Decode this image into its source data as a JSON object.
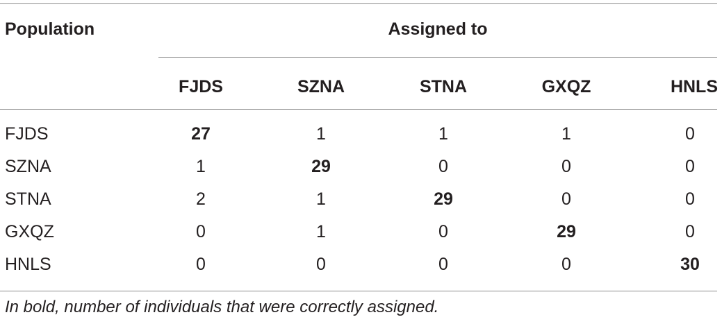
{
  "table": {
    "row_header_label": "Population",
    "group_header_label": "Assigned to",
    "columns": [
      "FJDS",
      "SZNA",
      "STNA",
      "GXQZ",
      "HNLS"
    ],
    "rows": [
      {
        "population": "FJDS",
        "values": [
          "27",
          "1",
          "1",
          "1",
          "0"
        ],
        "bold_index": 0
      },
      {
        "population": "SZNA",
        "values": [
          "1",
          "29",
          "0",
          "0",
          "0"
        ],
        "bold_index": 1
      },
      {
        "population": "STNA",
        "values": [
          "2",
          "1",
          "29",
          "0",
          "0"
        ],
        "bold_index": 2
      },
      {
        "population": "GXQZ",
        "values": [
          "0",
          "1",
          "0",
          "29",
          "0"
        ],
        "bold_index": 3
      },
      {
        "population": "HNLS",
        "values": [
          "0",
          "0",
          "0",
          "0",
          "30"
        ],
        "bold_index": 4
      }
    ]
  },
  "footnote": "In bold, number of individuals that were correctly assigned."
}
